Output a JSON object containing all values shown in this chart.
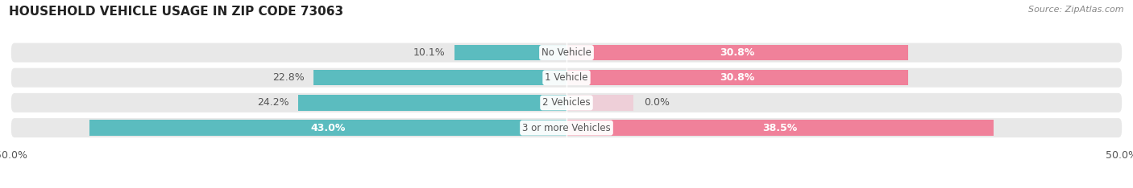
{
  "title": "HOUSEHOLD VEHICLE USAGE IN ZIP CODE 73063",
  "source": "Source: ZipAtlas.com",
  "categories": [
    "No Vehicle",
    "1 Vehicle",
    "2 Vehicles",
    "3 or more Vehicles"
  ],
  "owner_values": [
    10.1,
    22.8,
    24.2,
    43.0
  ],
  "renter_values": [
    30.8,
    30.8,
    0.0,
    38.5
  ],
  "owner_color": "#5bbcbf",
  "renter_color": "#f0819a",
  "renter_color_light": "#f5b8ca",
  "xlim": [
    -50,
    50
  ],
  "bar_height": 0.62,
  "row_bg_color": "#e8e8e8",
  "title_fontsize": 11,
  "source_fontsize": 8,
  "label_fontsize": 9,
  "category_fontsize": 8.5,
  "legend_fontsize": 9,
  "fig_bg_color": "#ffffff",
  "text_dark": "#555555",
  "text_white": "#ffffff"
}
